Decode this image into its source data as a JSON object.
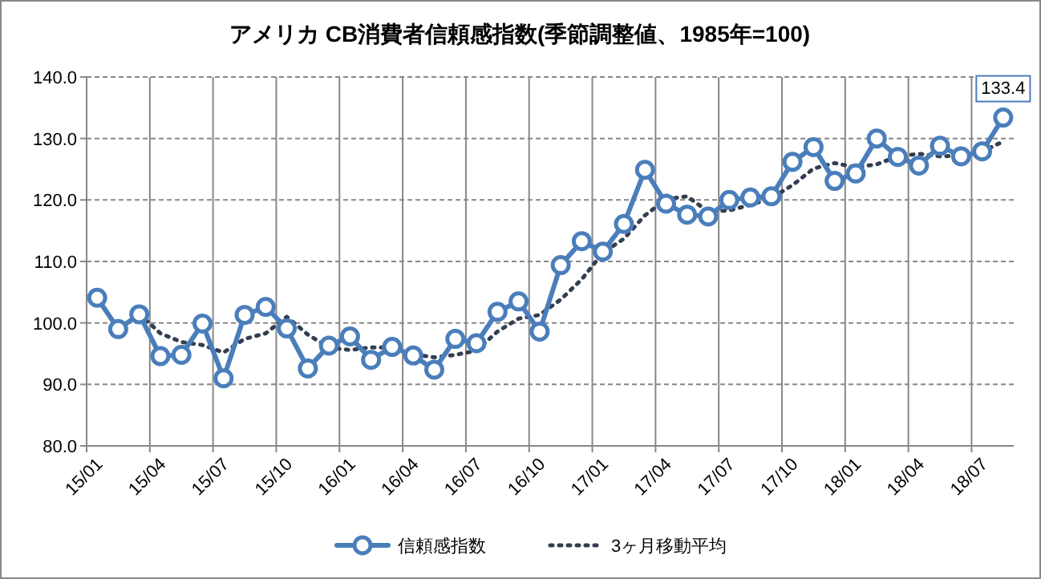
{
  "chart_data": {
    "type": "line",
    "title": "アメリカ CB消費者信頼感指数(季節調整値、1985年=100)",
    "categories": [
      "15/01",
      null,
      null,
      "15/04",
      null,
      null,
      "15/07",
      null,
      null,
      "15/10",
      null,
      null,
      "16/01",
      null,
      null,
      "16/04",
      null,
      null,
      "16/07",
      null,
      null,
      "16/10",
      null,
      null,
      "17/01",
      null,
      null,
      "17/04",
      null,
      null,
      "17/07",
      null,
      null,
      "17/10",
      null,
      null,
      "18/01",
      null,
      null,
      "18/04",
      null,
      null,
      "18/07",
      null
    ],
    "series": [
      {
        "name": "信頼感指数",
        "color": "#4a7ebb",
        "marker": "circle",
        "line_style": "solid",
        "values": [
          104.1,
          99.0,
          101.4,
          94.6,
          94.8,
          99.9,
          91.0,
          101.3,
          102.6,
          99.1,
          92.6,
          96.3,
          97.8,
          94.0,
          96.1,
          94.7,
          92.4,
          97.4,
          96.7,
          101.8,
          103.5,
          98.6,
          109.4,
          113.3,
          111.6,
          116.1,
          124.9,
          119.4,
          117.6,
          117.3,
          120.0,
          120.4,
          120.6,
          126.2,
          128.6,
          123.1,
          124.3,
          130.0,
          127.0,
          125.6,
          128.8,
          127.1,
          127.9,
          133.4
        ],
        "value_labels": [
          null,
          null,
          null,
          null,
          null,
          null,
          null,
          null,
          null,
          null,
          null,
          null,
          null,
          null,
          null,
          null,
          null,
          null,
          null,
          null,
          null,
          null,
          null,
          null,
          null,
          null,
          null,
          null,
          null,
          null,
          null,
          null,
          null,
          null,
          null,
          null,
          null,
          null,
          null,
          null,
          null,
          null,
          null,
          "133.4"
        ]
      },
      {
        "name": "3ヶ月移動平均",
        "color": "#333f50",
        "marker": "none",
        "line_style": "dotted",
        "values": [
          null,
          null,
          101.5,
          98.3,
          96.9,
          96.4,
          95.2,
          97.4,
          98.3,
          101.0,
          98.1,
          96.0,
          95.6,
          96.0,
          96.0,
          94.9,
          94.4,
          94.8,
          95.5,
          98.6,
          100.7,
          101.3,
          103.8,
          107.1,
          111.4,
          113.7,
          117.5,
          120.1,
          120.6,
          118.1,
          118.3,
          119.2,
          120.3,
          122.4,
          125.1,
          126.0,
          125.3,
          125.8,
          127.1,
          127.5,
          127.1,
          127.2,
          127.9,
          129.5
        ]
      }
    ],
    "ylim": [
      80,
      140
    ],
    "yticks": [
      {
        "value": 80,
        "label": "80.0"
      },
      {
        "value": 90,
        "label": "90.0"
      },
      {
        "value": 100,
        "label": "100.0"
      },
      {
        "value": 110,
        "label": "110.0"
      },
      {
        "value": 120,
        "label": "120.0"
      },
      {
        "value": 130,
        "label": "130.0"
      },
      {
        "value": 140,
        "label": "140.0"
      }
    ],
    "grid": true,
    "legend": "bottom"
  }
}
